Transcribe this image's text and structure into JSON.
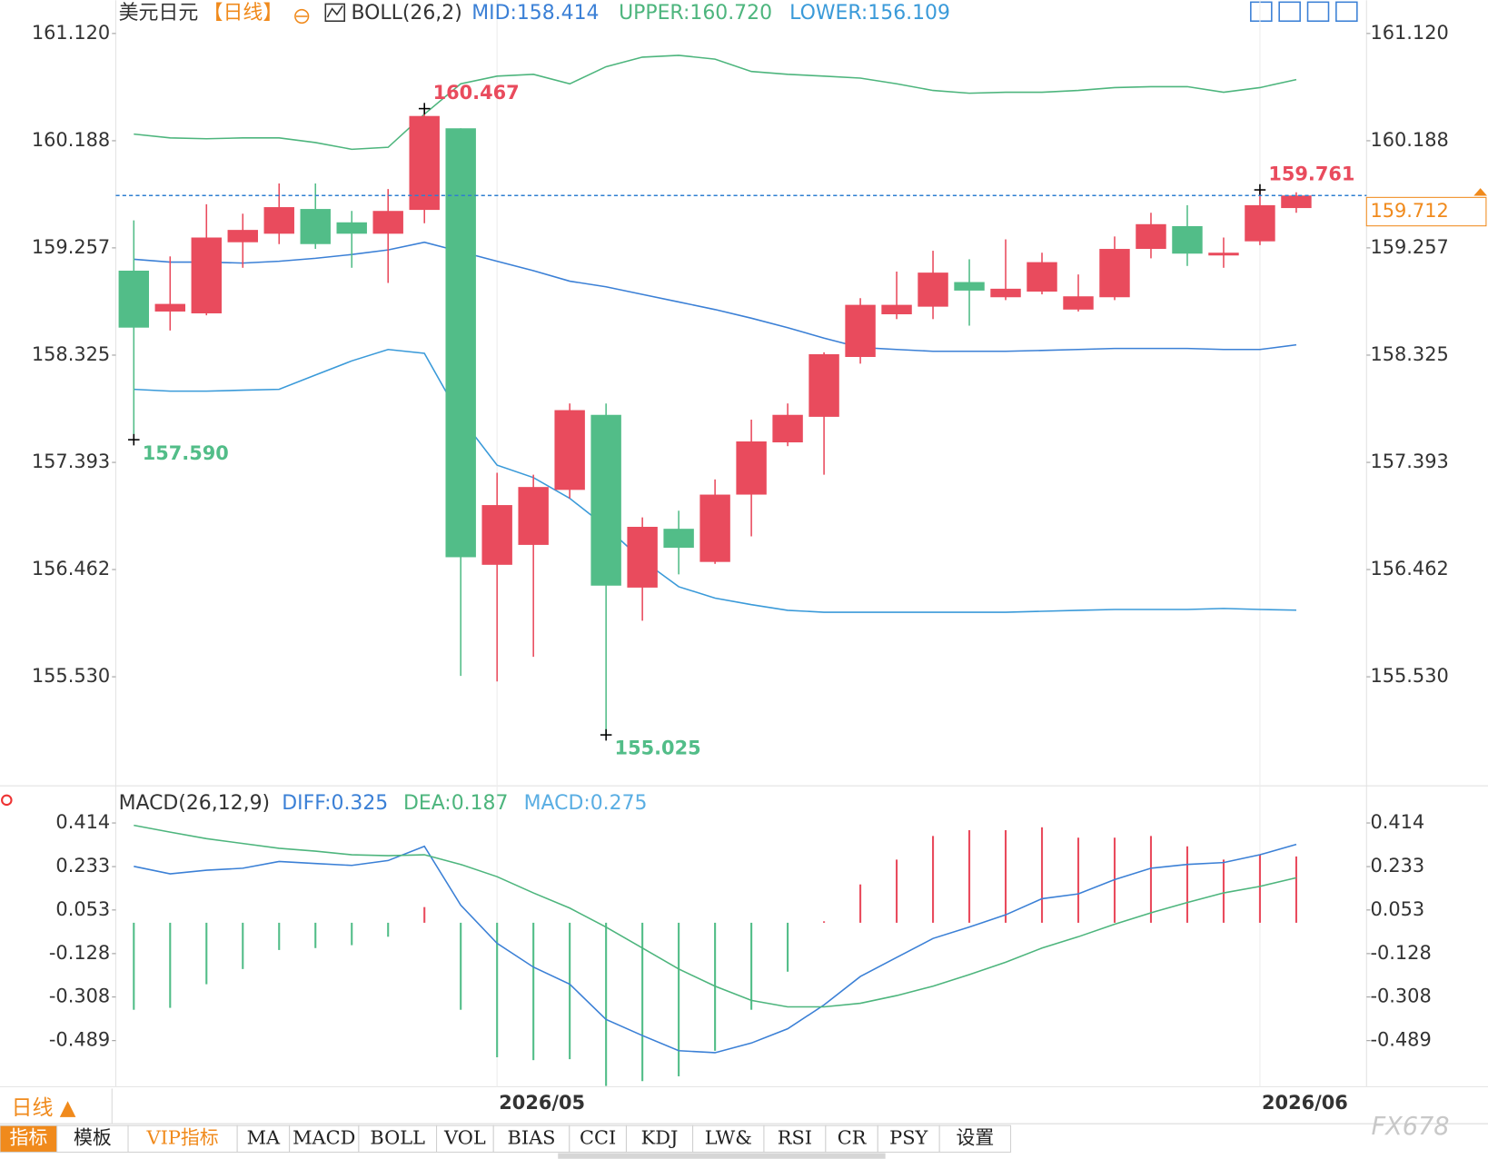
{
  "chart_data": [
    {
      "type": "candlestick",
      "title": "美元日元",
      "period": "【日线】",
      "indicator": "BOLL(26,2)",
      "up_color": "#e94b5d",
      "down_color": "#52bd88",
      "categories": [
        null,
        null,
        null,
        null,
        null,
        null,
        null,
        null,
        null,
        null,
        "2026/05",
        null,
        null,
        null,
        null,
        null,
        null,
        null,
        null,
        null,
        null,
        null,
        null,
        null,
        null,
        null,
        null,
        null,
        null,
        null,
        null,
        "2026/06",
        null
      ],
      "open": [
        159.059,
        158.704,
        158.688,
        159.306,
        159.38,
        159.595,
        159.479,
        159.38,
        159.587,
        160.296,
        156.503,
        156.676,
        157.154,
        157.806,
        156.305,
        156.816,
        156.528,
        157.113,
        157.567,
        157.789,
        158.309,
        158.68,
        158.746,
        158.96,
        158.828,
        158.877,
        158.721,
        158.828,
        159.248,
        159.446,
        159.191,
        159.314,
        159.603
      ],
      "high": [
        159.496,
        159.183,
        159.636,
        159.554,
        159.817,
        159.817,
        159.578,
        159.768,
        160.467,
        160.296,
        157.303,
        157.286,
        157.905,
        157.905,
        156.915,
        156.973,
        157.245,
        157.764,
        157.905,
        158.35,
        158.82,
        159.051,
        159.232,
        159.158,
        159.331,
        159.215,
        159.026,
        159.356,
        159.562,
        159.628,
        159.347,
        159.761,
        159.74
      ],
      "low": [
        157.59,
        158.539,
        158.671,
        159.084,
        159.29,
        159.248,
        159.084,
        158.952,
        159.471,
        155.538,
        155.489,
        155.703,
        157.08,
        155.025,
        156.017,
        156.42,
        156.511,
        156.75,
        157.534,
        157.286,
        158.251,
        158.638,
        158.638,
        158.581,
        158.803,
        158.853,
        158.704,
        158.803,
        159.166,
        159.1,
        159.084,
        159.281,
        159.562
      ],
      "close": [
        158.564,
        158.77,
        159.347,
        159.413,
        159.611,
        159.29,
        159.38,
        159.578,
        160.403,
        156.569,
        157.022,
        157.179,
        157.847,
        156.322,
        156.833,
        156.651,
        157.113,
        157.575,
        157.806,
        158.333,
        158.762,
        158.762,
        159.042,
        158.886,
        158.902,
        159.133,
        158.836,
        159.248,
        159.463,
        159.207,
        159.215,
        159.628,
        159.712
      ],
      "high_labels": [
        null,
        null,
        null,
        null,
        null,
        null,
        null,
        null,
        "160.467",
        null,
        null,
        null,
        null,
        null,
        null,
        null,
        null,
        null,
        null,
        null,
        null,
        null,
        null,
        null,
        null,
        null,
        null,
        null,
        null,
        null,
        null,
        "159.761",
        null
      ],
      "low_labels": [
        "157.590",
        null,
        null,
        null,
        null,
        null,
        null,
        null,
        null,
        null,
        null,
        null,
        null,
        "155.025",
        null,
        null,
        null,
        null,
        null,
        null,
        null,
        null,
        null,
        null,
        null,
        null,
        null,
        null,
        null,
        null,
        null,
        null,
        null
      ],
      "label_colors": {
        "high": "#e94b5d",
        "low": "#52bd88"
      },
      "last_price": 159.712,
      "last_price_color": "#f08a1c",
      "series": [
        {
          "label": "MID:158.414",
          "color": "#3b80d6",
          "values": [
            159.158,
            159.133,
            159.133,
            159.125,
            159.141,
            159.166,
            159.199,
            159.24,
            159.306,
            159.224,
            159.141,
            159.059,
            158.968,
            158.919,
            158.853,
            158.787,
            158.721,
            158.646,
            158.564,
            158.473,
            158.391,
            158.374,
            158.358,
            158.358,
            158.358,
            158.366,
            158.374,
            158.383,
            158.383,
            158.383,
            158.374,
            158.374,
            158.414
          ]
        },
        {
          "label": "UPPER:160.720",
          "color": "#4db57d",
          "values": [
            160.246,
            160.213,
            160.205,
            160.213,
            160.213,
            160.172,
            160.114,
            160.131,
            160.419,
            160.683,
            160.749,
            160.765,
            160.683,
            160.831,
            160.914,
            160.93,
            160.897,
            160.79,
            160.765,
            160.749,
            160.732,
            160.683,
            160.625,
            160.601,
            160.609,
            160.609,
            160.625,
            160.65,
            160.658,
            160.658,
            160.609,
            160.65,
            160.72
          ]
        },
        {
          "label": "LOWER:156.109",
          "color": "#3a9ad9",
          "values": [
            158.028,
            158.012,
            158.012,
            158.02,
            158.028,
            158.152,
            158.275,
            158.374,
            158.341,
            157.781,
            157.369,
            157.261,
            157.08,
            156.833,
            156.544,
            156.313,
            156.214,
            156.157,
            156.107,
            156.091,
            156.091,
            156.091,
            156.091,
            156.091,
            156.091,
            156.099,
            156.107,
            156.115,
            156.115,
            156.115,
            156.124,
            156.115,
            156.109
          ]
        }
      ],
      "ylim": [
        154.582,
        161.409
      ],
      "yticks": [
        {
          "value": 161.12,
          "label": "161.120"
        },
        160.188,
        159.257,
        158.325,
        157.393,
        156.462,
        {
          "value": 155.53,
          "label": "155.530"
        }
      ]
    },
    {
      "type": "macd",
      "title": "MACD(26,12,9)",
      "series": [
        {
          "label": "DIFF:0.325",
          "kind": "line",
          "color": "#3b80d6",
          "values": [
            0.234,
            0.203,
            0.218,
            0.226,
            0.254,
            0.246,
            0.238,
            0.258,
            0.317,
            0.073,
            -0.085,
            -0.184,
            -0.255,
            -0.401,
            -0.468,
            -0.531,
            -0.539,
            -0.499,
            -0.44,
            -0.341,
            -0.223,
            -0.144,
            -0.065,
            -0.018,
            0.033,
            0.1,
            0.12,
            0.179,
            0.226,
            0.242,
            0.25,
            0.282,
            0.325
          ]
        },
        {
          "label": "DEA:0.187",
          "kind": "line",
          "color": "#4db57d",
          "values": [
            0.404,
            0.376,
            0.349,
            0.329,
            0.309,
            0.297,
            0.282,
            0.278,
            0.282,
            0.242,
            0.191,
            0.124,
            0.061,
            -0.018,
            -0.105,
            -0.192,
            -0.263,
            -0.322,
            -0.349,
            -0.349,
            -0.334,
            -0.302,
            -0.263,
            -0.215,
            -0.164,
            -0.105,
            -0.058,
            -0.006,
            0.041,
            0.084,
            0.124,
            0.151,
            0.187
          ]
        },
        {
          "label": "MACD:0.275",
          "kind": "bar",
          "color": "#5aaee3",
          "up_color": "#e94b5d",
          "down_color": "#52bd88",
          "values": [
            -0.361,
            -0.353,
            -0.255,
            -0.192,
            -0.113,
            -0.105,
            -0.093,
            -0.058,
            0.065,
            -0.361,
            -0.558,
            -0.57,
            -0.566,
            -0.677,
            -0.657,
            -0.637,
            -0.531,
            -0.361,
            -0.203,
            0.006,
            0.159,
            0.262,
            0.36,
            0.384,
            0.384,
            0.396,
            0.353,
            0.353,
            0.36,
            0.317,
            0.262,
            0.282,
            0.275
          ]
        }
      ],
      "ylim": [
        -0.68,
        0.56
      ],
      "yticks": [
        0.414,
        0.233,
        0.053,
        -0.128,
        -0.308,
        -0.489
      ]
    }
  ],
  "footer": {
    "period": "日线 ▲",
    "tabs": [
      "指标",
      "模板",
      "VIP指标",
      "MA",
      "MACD",
      "BOLL",
      "VOL",
      "BIAS",
      "CCI",
      "KDJ",
      "LW&",
      "RSI",
      "CR",
      "PSY",
      "设置"
    ],
    "watermark": "FX678"
  }
}
